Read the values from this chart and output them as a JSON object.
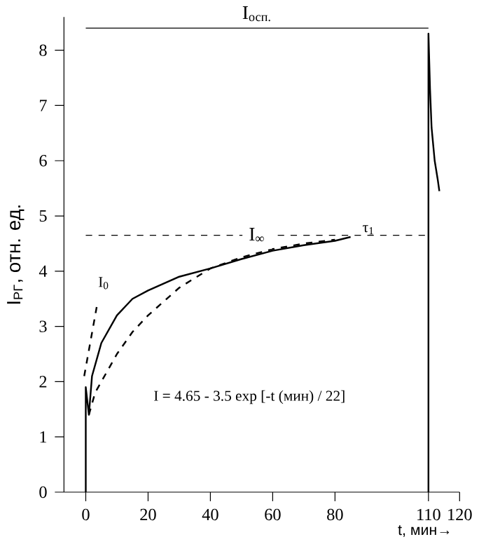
{
  "chart_data": {
    "type": "line",
    "xlabel": "t, мин→",
    "ylabel": "I$_{РГ}$, отн. ед.",
    "xlim": [
      -7,
      120
    ],
    "ylim": [
      0,
      8.6
    ],
    "xticks": [
      0,
      20,
      40,
      60,
      80,
      110,
      120
    ],
    "yticks": [
      0,
      1,
      2,
      3,
      4,
      5,
      6,
      7,
      8
    ],
    "series": [
      {
        "color": "#000000",
        "line_style": "solid",
        "x": [
          0,
          0,
          1,
          2,
          5,
          10,
          15,
          20,
          30,
          40,
          50,
          60,
          70,
          80,
          85,
          null,
          110,
          110,
          110.5,
          111,
          112,
          113,
          113.5
        ],
        "values": [
          0,
          1.9,
          1.4,
          2.1,
          2.7,
          3.2,
          3.5,
          3.65,
          3.9,
          4.05,
          4.22,
          4.37,
          4.47,
          4.55,
          4.62,
          null,
          0,
          8.3,
          7.3,
          6.6,
          6.0,
          5.65,
          5.45
        ]
      },
      {
        "color": "#000000",
        "line_style": "dashed",
        "x": [
          1,
          3,
          5,
          10,
          15,
          20,
          30,
          40,
          50,
          60,
          70,
          80
        ],
        "values": [
          1.4,
          1.8,
          2.0,
          2.5,
          2.9,
          3.2,
          3.7,
          4.05,
          4.25,
          4.4,
          4.5,
          4.57
        ]
      },
      {
        "color": "#000000",
        "line_style": "dashed",
        "x": [
          -0.5,
          3.5
        ],
        "values": [
          2.1,
          3.35
        ]
      }
    ],
    "ref_lines": [
      {
        "axis": "y",
        "value": 4.65,
        "label": "I$_{∞}$",
        "line_style": "dashed",
        "color": "#000000"
      },
      {
        "axis": "y",
        "value": 8.4,
        "label": "I$_{осп.}$",
        "line_style": "solid",
        "color": "#000000"
      }
    ],
    "annotations": [
      "I$_{0}$",
      "I = 4.65 - 3.5 exp [-t (мин) / 22]",
      {
        "text": "τ$_{1}$",
        "x": 88,
        "y": 4.75
      }
    ],
    "grid": false,
    "marker": "none"
  }
}
